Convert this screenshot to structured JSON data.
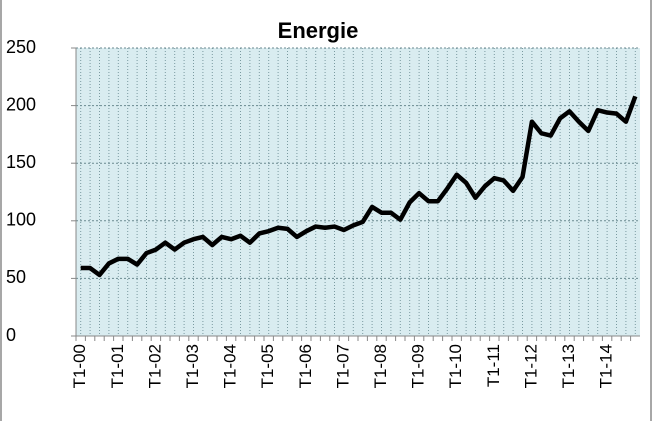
{
  "chart_data": {
    "type": "line",
    "title": "Energie",
    "categories": [
      "T1-00",
      null,
      null,
      null,
      "T1-01",
      null,
      null,
      null,
      "T1-02",
      null,
      null,
      null,
      "T1-03",
      null,
      null,
      null,
      "T1-04",
      null,
      null,
      null,
      "T1-05",
      null,
      null,
      null,
      "T1-06",
      null,
      null,
      null,
      "T1-07",
      null,
      null,
      null,
      "T1-08",
      null,
      null,
      null,
      "T1-09",
      null,
      null,
      null,
      "T1-10",
      null,
      null,
      null,
      "T1-11",
      null,
      null,
      null,
      "T1-12",
      null,
      null,
      null,
      "T1-13",
      null,
      null,
      null,
      "T1-14",
      null,
      null,
      null
    ],
    "series": [
      {
        "color": "#000000",
        "values": [
          59,
          59,
          53,
          63,
          67,
          67,
          62,
          72,
          75,
          81,
          75,
          81,
          84,
          86,
          79,
          86,
          84,
          87,
          81,
          89,
          91,
          94,
          93,
          86,
          91,
          95,
          94,
          95,
          92,
          96,
          99,
          112,
          107,
          107,
          101,
          116,
          124,
          117,
          117,
          128,
          140,
          133,
          120,
          130,
          137,
          135,
          126,
          138,
          186,
          176,
          174,
          189,
          195,
          186,
          178,
          196,
          194,
          193,
          186,
          208
        ]
      }
    ],
    "ylim": [
      0,
      250
    ],
    "yticks": [
      0,
      50,
      100,
      150,
      200,
      250
    ],
    "grid": true,
    "background": "#d9ecf0"
  }
}
